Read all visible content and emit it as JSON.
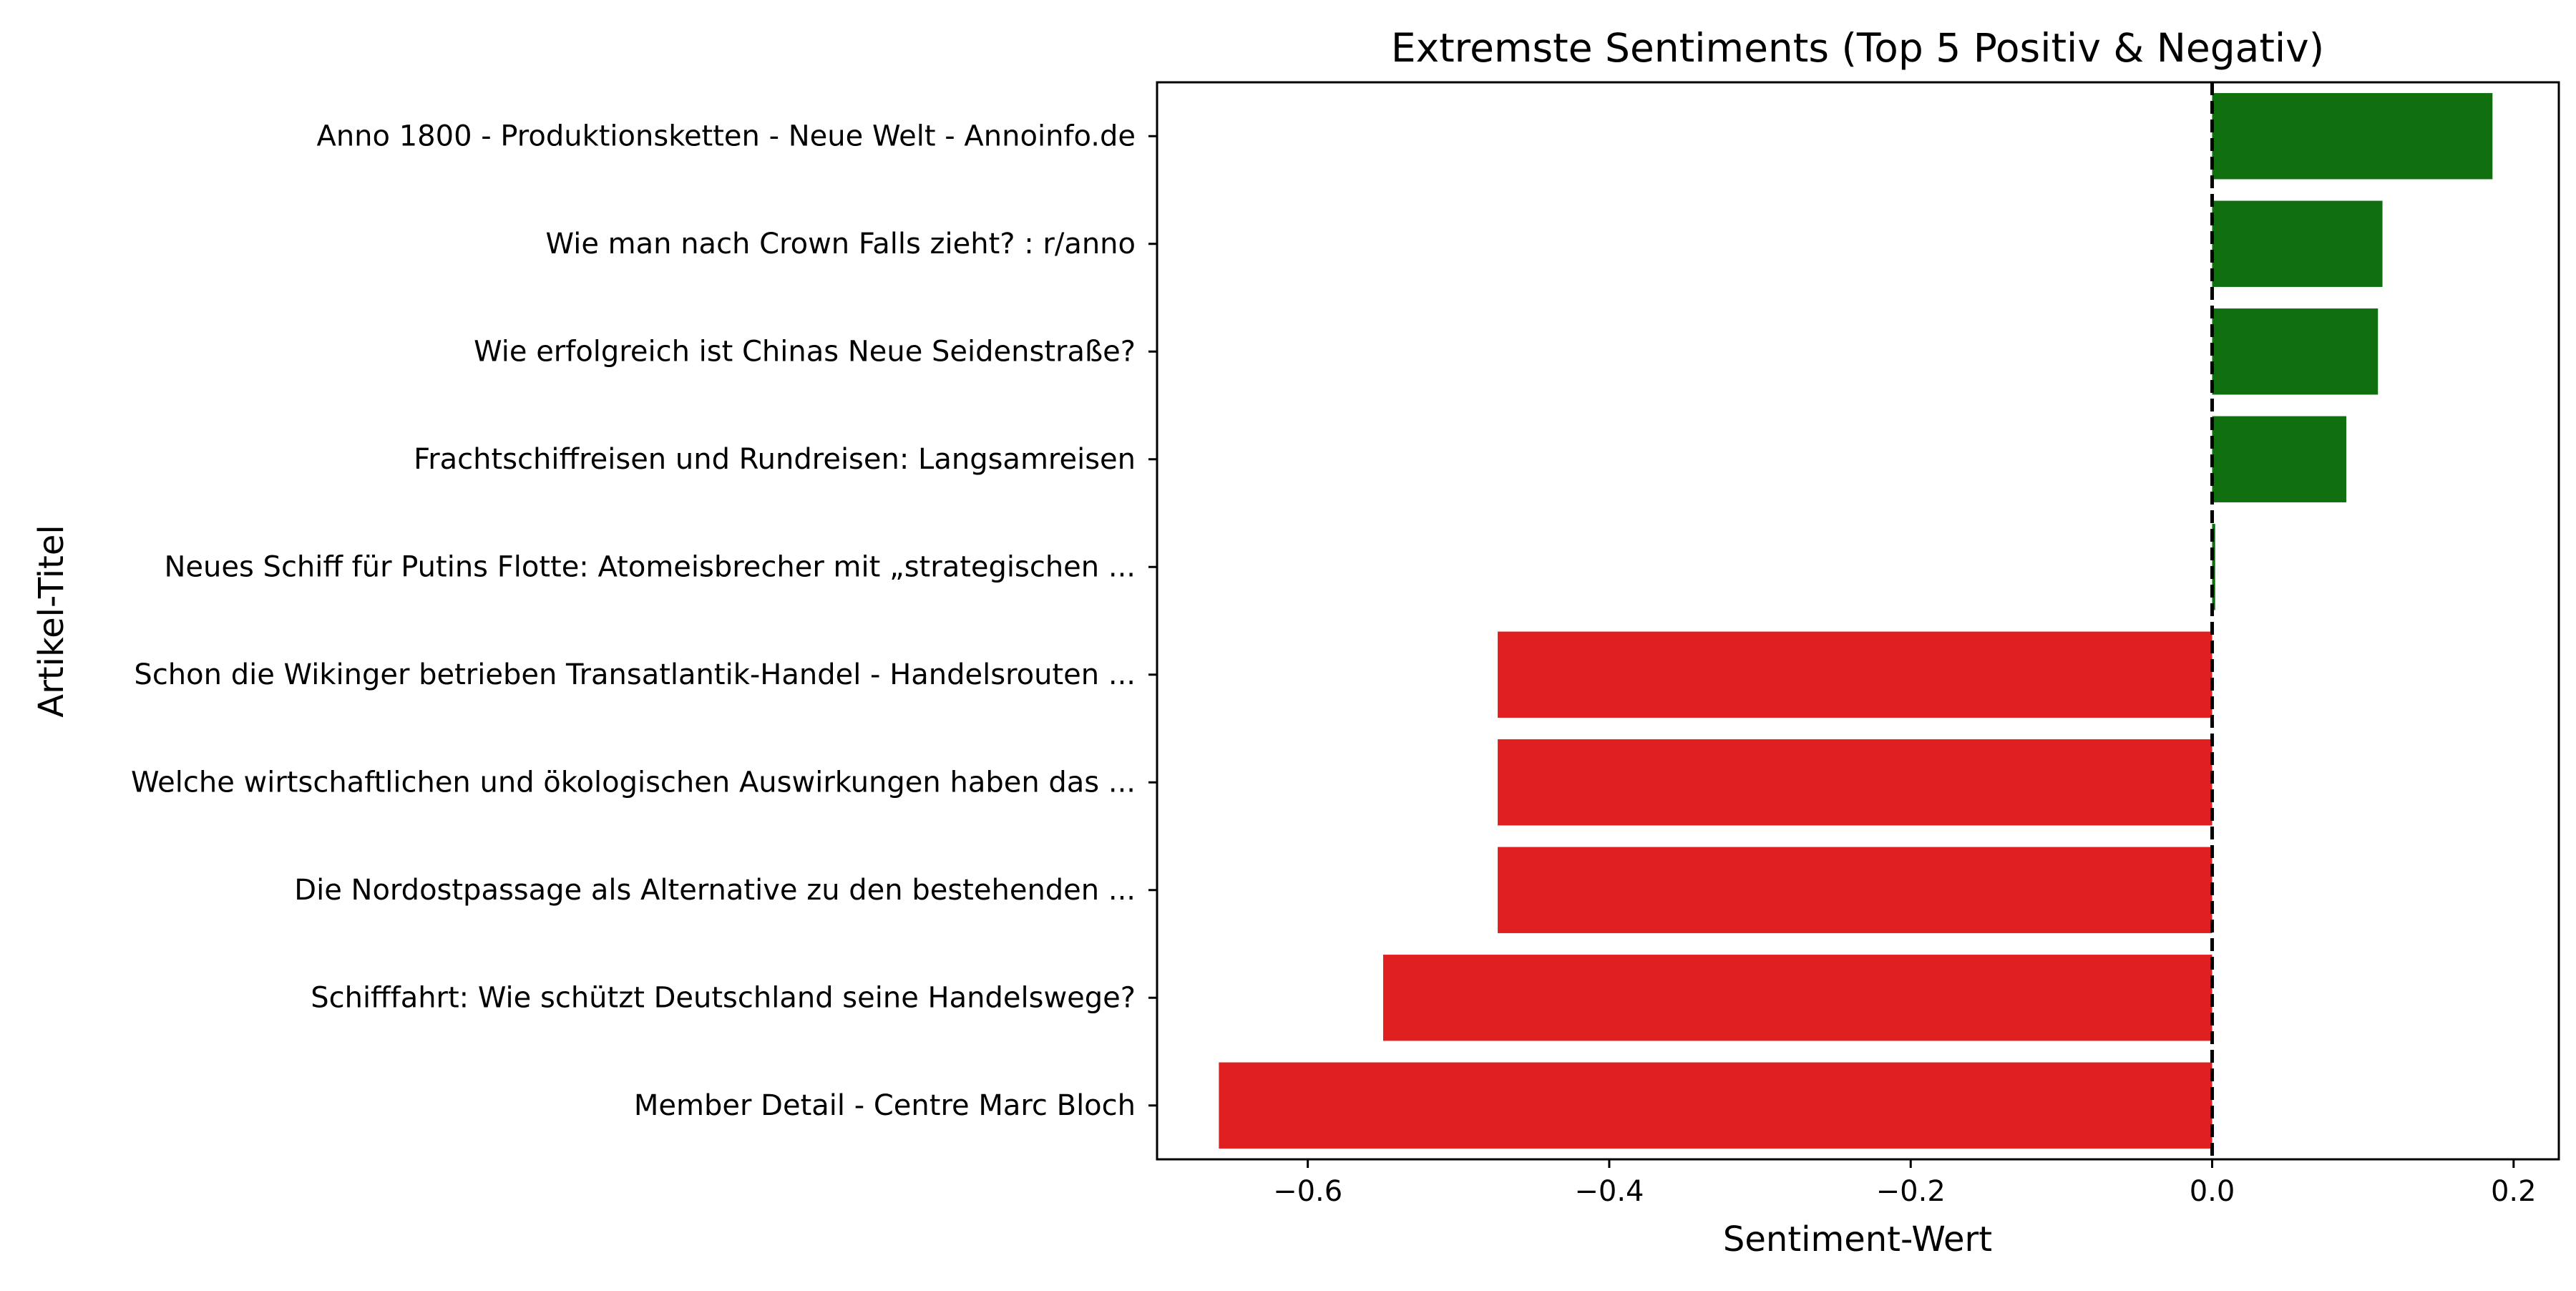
{
  "chart_data": {
    "type": "bar",
    "orientation": "horizontal",
    "title": "Extremste Sentiments (Top 5 Positiv & Negativ)",
    "xlabel": "Sentiment-Wert",
    "ylabel": "Artikel-Titel",
    "xlim": [
      -0.7,
      0.23
    ],
    "xticks": [
      -0.6,
      -0.4,
      -0.2,
      0.0,
      0.2
    ],
    "xtick_labels": [
      "−0.6",
      "−0.4",
      "−0.2",
      "0.0",
      "0.2"
    ],
    "grid": false,
    "reference_line": {
      "x": 0.0,
      "style": "dashed",
      "color": "#000000"
    },
    "categories": [
      "Anno 1800 - Produktionsketten - Neue Welt - Annoinfo.de",
      "Wie man nach Crown Falls zieht? : r/anno",
      "Wie erfolgreich ist Chinas Neue Seidenstraße?",
      "Frachtschiffreisen und Rundreisen: Langsamreisen",
      "Neues Schiff für Putins Flotte: Atomeisbrecher mit „strategischen ...",
      "Schon die Wikinger betrieben Transatlantik-Handel - Handelsrouten ...",
      "Welche wirtschaftlichen und ökologischen Auswirkungen haben das ...",
      "Die Nordostpassage als Alternative zu den bestehenden ...",
      "Schifffahrt: Wie schützt Deutschland seine Handelswege?",
      "Member Detail - Centre Marc Bloch"
    ],
    "values": [
      0.186,
      0.113,
      0.11,
      0.089,
      0.002,
      -0.474,
      -0.474,
      -0.474,
      -0.55,
      -0.659
    ],
    "colors": {
      "positive": "#107010",
      "negative": "#e02020"
    }
  }
}
